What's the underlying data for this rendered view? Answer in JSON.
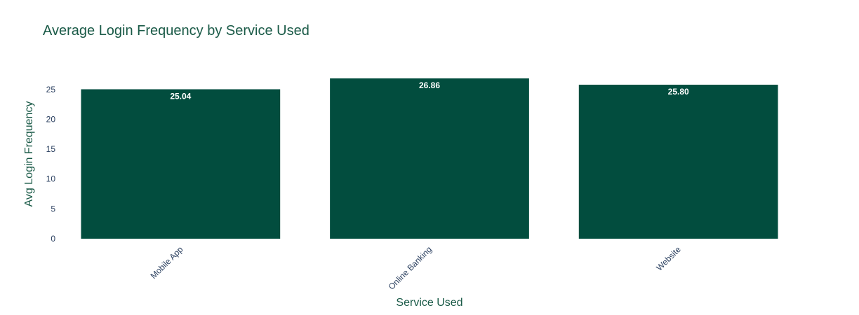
{
  "chart_data": {
    "type": "bar",
    "title": "Average Login Frequency by Service Used",
    "xlabel": "Service Used",
    "ylabel": "Avg Login Frequency",
    "categories": [
      "Mobile App",
      "Online Banking",
      "Website"
    ],
    "values": [
      25.04,
      26.86,
      25.8
    ],
    "value_labels": [
      "25.04",
      "26.86",
      "25.80"
    ],
    "yticks": [
      0,
      5,
      10,
      15,
      20,
      25
    ],
    "ylim": [
      0,
      26.86
    ],
    "grid": false,
    "legend": "none",
    "colors": {
      "bar": "#024d3e",
      "title": "#1a5a47",
      "axis_title": "#1a5a47",
      "tick": "#2a3f5f",
      "bar_label": "#ffffff"
    }
  }
}
